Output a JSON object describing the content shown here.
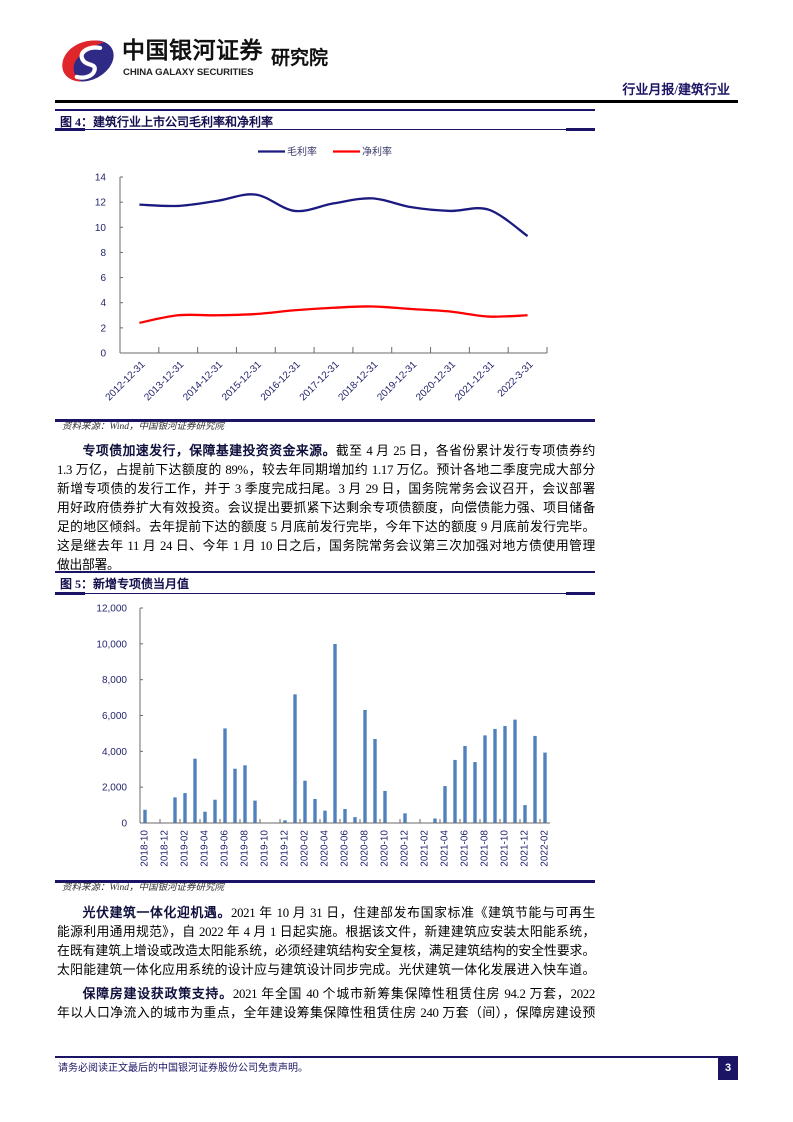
{
  "header": {
    "logo_icon": "galaxy-swirl-logo",
    "brand_cn": "中国银河证券",
    "brand_en": "CHINA GALAXY SECURITIES",
    "institute": "研究院",
    "report_type": "行业月报/建筑行业"
  },
  "figure4": {
    "label": "图 4：",
    "title": "建筑行业上市公司毛利率和净利率",
    "source": "资料来源：Wind，中国银河证券研究院"
  },
  "figure5": {
    "label": "图 5：",
    "title": "新增专项债当月值",
    "source": "资料来源：Wind，中国银河证券研究院"
  },
  "paragraphs": [
    {
      "lead": "专项债加速发行，保障基建投资资金来源。",
      "lines": [
        "截至 4 月 25 日，各省份累计发行专项债券约",
        "1.3 万亿，占提前下达额度的 89%，较去年同期增加约 1.17 万亿。预计各地二季度完成大部分",
        "新增专项债的发行工作，并于 3 季度完成扫尾。3 月 29 日，国务院常务会议召开，会议部署",
        "用好政府债券扩大有效投资。会议提出要抓紧下达剩余专项债额度，向偿债能力强、项目储备",
        "足的地区倾斜。去年提前下达的额度 5 月底前发行完毕，今年下达的额度 9 月底前发行完毕。",
        "这是继去年 11 月 24 日、今年 1 月 10 日之后，国务院常务会议第三次加强对地方债使用管理",
        "做出部署。"
      ]
    },
    {
      "lead": "光伏建筑一体化迎机遇。",
      "lines": [
        "2021 年 10 月 31 日，住建部发布国家标准《建筑节能与可再生",
        "能源利用通用规范》，自 2022 年 4 月 1 日起实施。根据该文件，新建建筑应安装太阳能系统，",
        "在既有建筑上增设或改造太阳能系统，必须经建筑结构安全复核，满足建筑结构的安全性要求。",
        "太阳能建筑一体化应用系统的设计应与建筑设计同步完成。光伏建筑一体化发展进入快车道。"
      ]
    },
    {
      "lead": "保障房建设获政策支持。",
      "lines": [
        "2021 年全国 40 个城市新筹集保障性租赁住房 94.2 万套，2022",
        "年以人口净流入的城市为重点，全年建设筹集保障性租赁住房 240 万套（间），保障房建设预"
      ]
    }
  ],
  "footer": {
    "disclaimer": "请务必阅读正文最后的中国银河证券股份公司免责声明。",
    "page_number": "3"
  },
  "colors": {
    "navy": "#1b1464",
    "logo_red": "#e0262b",
    "logo_navy": "#2f2a85"
  },
  "chart_data": [
    {
      "type": "line",
      "title": "建筑行业上市公司毛利率和净利率",
      "xlabel": "",
      "ylabel": "",
      "categories": [
        "2012-12-31",
        "2013-12-31",
        "2014-12-31",
        "2015-12-31",
        "2016-12-31",
        "2017-12-31",
        "2018-12-31",
        "2019-12-31",
        "2020-12-31",
        "2021-12-31",
        "2022-3-31"
      ],
      "series": [
        {
          "name": "毛利率",
          "color": "#1a1a80",
          "values": [
            11.8,
            11.7,
            12.1,
            12.6,
            11.3,
            11.9,
            12.3,
            11.6,
            11.3,
            11.4,
            9.3
          ]
        },
        {
          "name": "净利率",
          "color": "#ff0000",
          "values": [
            2.4,
            3.0,
            3.0,
            3.1,
            3.4,
            3.6,
            3.7,
            3.5,
            3.3,
            2.9,
            3.0
          ]
        }
      ],
      "ylim": [
        0,
        14
      ],
      "yticks": [
        0,
        2,
        4,
        6,
        8,
        10,
        12,
        14
      ],
      "ytick_labels": [
        "0",
        "2",
        "4",
        "6",
        "8",
        "10",
        "12",
        "14"
      ],
      "legend_position": "top",
      "grid": false,
      "smoothed": true
    },
    {
      "type": "bar",
      "title": "新增专项债当月值",
      "xlabel": "",
      "ylabel": "",
      "color": "#4f81bd",
      "categories": [
        "2018-10",
        "2018-11",
        "2018-12",
        "2019-01",
        "2019-02",
        "2019-03",
        "2019-04",
        "2019-05",
        "2019-06",
        "2019-07",
        "2019-08",
        "2019-09",
        "2019-10",
        "2019-11",
        "2019-12",
        "2020-01",
        "2020-02",
        "2020-03",
        "2020-04",
        "2020-05",
        "2020-06",
        "2020-07",
        "2020-08",
        "2020-09",
        "2020-10",
        "2020-11",
        "2020-12",
        "2021-01",
        "2021-02",
        "2021-03",
        "2021-04",
        "2021-05",
        "2021-06",
        "2021-07",
        "2021-08",
        "2021-09",
        "2021-10",
        "2021-11",
        "2021-12",
        "2022-01",
        "2022-02"
      ],
      "values": [
        740,
        0,
        0,
        1430,
        1670,
        3590,
        630,
        1300,
        5280,
        3030,
        3220,
        1250,
        0,
        0,
        150,
        7180,
        2360,
        1340,
        690,
        9990,
        780,
        330,
        6310,
        4690,
        1790,
        0,
        540,
        0,
        0,
        250,
        2060,
        3520,
        4300,
        3400,
        4890,
        5250,
        5410,
        5770,
        1000,
        4860,
        3930
      ],
      "xtick_label_every": 2,
      "ylim": [
        0,
        12000
      ],
      "yticks": [
        0,
        2000,
        4000,
        6000,
        8000,
        10000,
        12000
      ],
      "ytick_labels": [
        "0",
        "2,000",
        "4,000",
        "6,000",
        "8,000",
        "10,000",
        "12,000"
      ],
      "legend_position": "none",
      "grid": false
    }
  ]
}
